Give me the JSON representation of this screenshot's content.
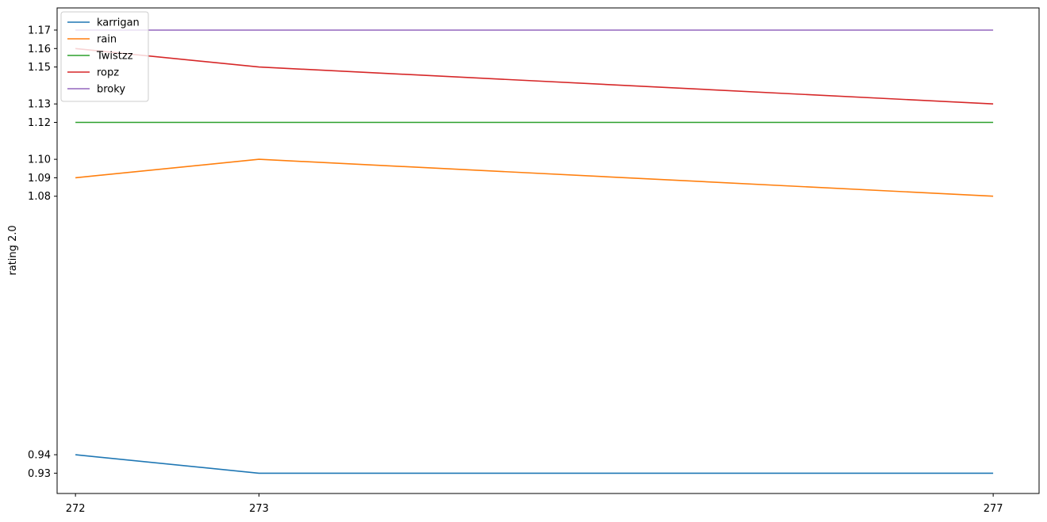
{
  "chart_data": {
    "type": "line",
    "title": "",
    "xlabel": "",
    "ylabel": "rating 2.0",
    "x": [
      272,
      273,
      277
    ],
    "x_ticks": [
      272,
      273,
      277
    ],
    "y_ticks": [
      0.93,
      0.94,
      1.08,
      1.09,
      1.1,
      1.12,
      1.13,
      1.15,
      1.16,
      1.17
    ],
    "ylim": [
      0.919,
      1.182
    ],
    "xlim": [
      271.9,
      277.25
    ],
    "grid": false,
    "legend_position": "top-left",
    "series": [
      {
        "name": "karrigan",
        "values": [
          0.94,
          0.93,
          0.93
        ],
        "color": "#1f77b4"
      },
      {
        "name": "rain",
        "values": [
          1.09,
          1.1,
          1.08
        ],
        "color": "#ff7f0e"
      },
      {
        "name": "Twistzz",
        "values": [
          1.12,
          1.12,
          1.12
        ],
        "color": "#2ca02c"
      },
      {
        "name": "ropz",
        "values": [
          1.16,
          1.15,
          1.13
        ],
        "color": "#d62728"
      },
      {
        "name": "broky",
        "values": [
          1.17,
          1.17,
          1.17
        ],
        "color": "#9467bd"
      }
    ]
  }
}
